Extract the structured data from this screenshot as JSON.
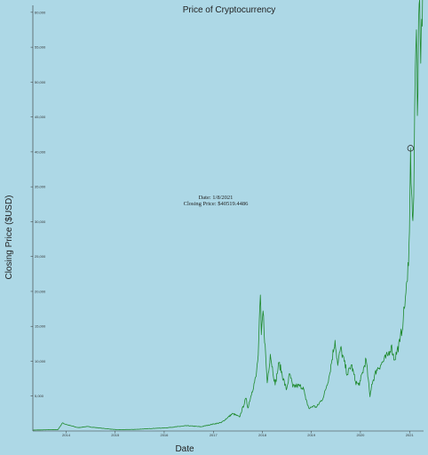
{
  "chart_data": {
    "type": "line",
    "title": "Price of Cryptocurrency",
    "xlabel": "Date",
    "ylabel": "Closing Price ($USD)",
    "ylim": [
      0,
      61000
    ],
    "y_ticks": [
      "5,000",
      "10,000",
      "15,000",
      "20,000",
      "25,000",
      "30,000",
      "35,000",
      "40,000",
      "45,000",
      "50,000",
      "55,000",
      "60,000"
    ],
    "y_tick_values": [
      5000,
      10000,
      15000,
      20000,
      25000,
      30000,
      35000,
      40000,
      45000,
      50000,
      55000,
      60000
    ],
    "x_ticks": [
      "2014",
      "2015",
      "2016",
      "2017",
      "2018",
      "2019",
      "2020",
      "2021"
    ],
    "x_tick_values": [
      "2014-01-01",
      "2015-01-01",
      "2016-01-01",
      "2017-01-01",
      "2018-01-01",
      "2019-01-01",
      "2020-01-01",
      "2021-01-01"
    ],
    "xlim": [
      "2013-04-28",
      "2021-04-15"
    ],
    "series": [
      {
        "color": "#1f8a2e",
        "points": [
          [
            "2013-04-28",
            135
          ],
          [
            "2013-11-01",
            200
          ],
          [
            "2013-12-04",
            1150
          ],
          [
            "2014-01-15",
            850
          ],
          [
            "2014-04-01",
            480
          ],
          [
            "2014-06-01",
            640
          ],
          [
            "2014-10-01",
            380
          ],
          [
            "2015-01-14",
            180
          ],
          [
            "2015-06-01",
            230
          ],
          [
            "2015-11-04",
            400
          ],
          [
            "2016-01-01",
            430
          ],
          [
            "2016-06-17",
            760
          ],
          [
            "2016-10-01",
            610
          ],
          [
            "2017-01-01",
            1000
          ],
          [
            "2017-03-01",
            1200
          ],
          [
            "2017-05-25",
            2500
          ],
          [
            "2017-07-15",
            2000
          ],
          [
            "2017-09-01",
            4700
          ],
          [
            "2017-09-15",
            3300
          ],
          [
            "2017-10-15",
            5600
          ],
          [
            "2017-11-15",
            7800
          ],
          [
            "2017-12-01",
            10900
          ],
          [
            "2017-12-17",
            19500
          ],
          [
            "2017-12-24",
            13800
          ],
          [
            "2018-01-06",
            17200
          ],
          [
            "2018-02-06",
            6900
          ],
          [
            "2018-03-01",
            11000
          ],
          [
            "2018-04-06",
            6600
          ],
          [
            "2018-05-05",
            9800
          ],
          [
            "2018-06-28",
            5900
          ],
          [
            "2018-07-24",
            8200
          ],
          [
            "2018-08-15",
            6300
          ],
          [
            "2018-09-15",
            6500
          ],
          [
            "2018-11-01",
            6300
          ],
          [
            "2018-11-20",
            4500
          ],
          [
            "2018-12-15",
            3200
          ],
          [
            "2019-01-15",
            3600
          ],
          [
            "2019-02-08",
            3400
          ],
          [
            "2019-04-02",
            4900
          ],
          [
            "2019-05-15",
            8000
          ],
          [
            "2019-06-26",
            13000
          ],
          [
            "2019-07-16",
            9400
          ],
          [
            "2019-08-06",
            11900
          ],
          [
            "2019-09-26",
            8100
          ],
          [
            "2019-10-26",
            9500
          ],
          [
            "2019-11-25",
            7100
          ],
          [
            "2019-12-18",
            6600
          ],
          [
            "2020-01-01",
            7200
          ],
          [
            "2020-02-12",
            10300
          ],
          [
            "2020-03-12",
            4900
          ],
          [
            "2020-03-25",
            6700
          ],
          [
            "2020-05-01",
            8800
          ],
          [
            "2020-06-01",
            9500
          ],
          [
            "2020-07-27",
            11000
          ],
          [
            "2020-08-17",
            12200
          ],
          [
            "2020-09-10",
            10200
          ],
          [
            "2020-10-21",
            12800
          ],
          [
            "2020-11-15",
            16000
          ],
          [
            "2020-12-01",
            19200
          ],
          [
            "2020-12-16",
            21500
          ],
          [
            "2020-12-28",
            27000
          ],
          [
            "2021-01-03",
            33000
          ],
          [
            "2021-01-08",
            40519
          ],
          [
            "2021-01-12",
            35500
          ],
          [
            "2021-01-22",
            30800
          ],
          [
            "2021-02-01",
            33500
          ],
          [
            "2021-02-08",
            46500
          ],
          [
            "2021-02-21",
            57500
          ],
          [
            "2021-02-28",
            45200
          ],
          [
            "2021-03-13",
            61200
          ],
          [
            "2021-03-25",
            52700
          ],
          [
            "2021-04-01",
            59000
          ],
          [
            "2021-04-13",
            63400
          ],
          [
            "2021-04-15",
            62000
          ]
        ]
      }
    ],
    "tooltip": {
      "date_label": "Date: 1/8/2021",
      "price_label": "Closing Price: $40519.4486",
      "date": "2021-01-08",
      "value": 40519
    },
    "grid": false
  }
}
